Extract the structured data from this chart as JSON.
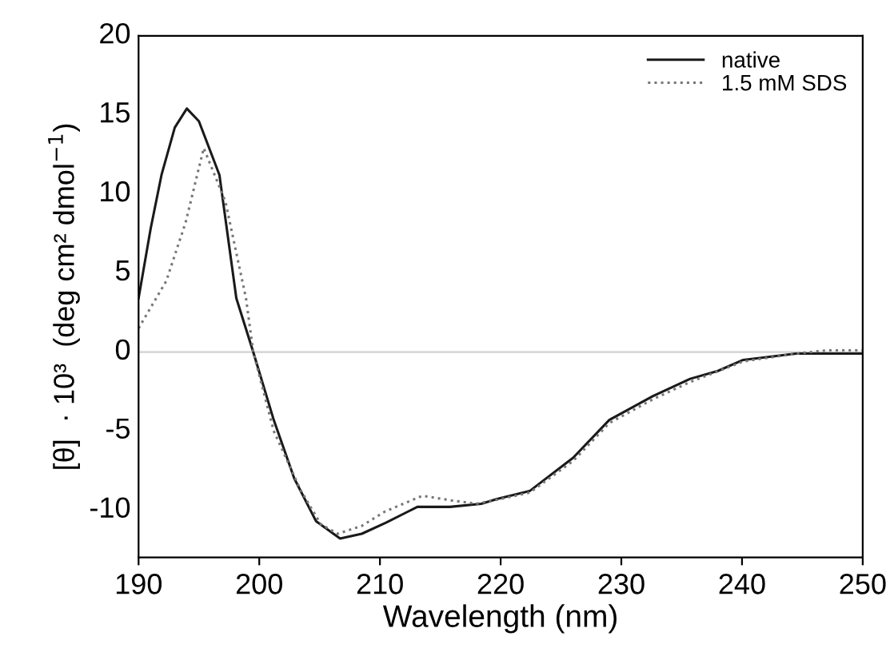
{
  "chart_data": {
    "type": "line",
    "xlabel": "Wavelength (nm)",
    "ylabel": "[θ]  · 10³  (deg cm² dmol$^{−1}$)",
    "xlim": [
      190,
      250
    ],
    "ylim": [
      -13,
      20
    ],
    "xticks": [
      190,
      200,
      210,
      220,
      230,
      240,
      250
    ],
    "yticks": [
      -10,
      -5,
      0,
      5,
      10,
      15,
      20
    ],
    "grid": false,
    "legend": "top right",
    "ref_lines": [
      {
        "axis": "y",
        "value": 0,
        "color": "#d9d9d9"
      }
    ],
    "series": [
      {
        "name": "native",
        "color": "#1a1a1a",
        "line_style": "solid",
        "x": [
          190,
          191,
          191.9,
          193,
          194,
          195,
          196,
          196.7,
          198.1,
          199.5,
          201.2,
          202.9,
          204.7,
          206.7,
          208.5,
          210.5,
          213.1,
          215.8,
          218.4,
          219.7,
          222.4,
          226,
          229,
          232.6,
          235.7,
          238,
          240.1,
          244.5,
          250
        ],
        "values": [
          3.4,
          7.8,
          11.2,
          14.2,
          15.4,
          14.6,
          12.6,
          11.2,
          3.4,
          0,
          -4.3,
          -8.0,
          -10.7,
          -11.8,
          -11.5,
          -10.8,
          -9.8,
          -9.8,
          -9.6,
          -9.3,
          -8.8,
          -6.7,
          -4.3,
          -2.8,
          -1.7,
          -1.2,
          -0.5,
          -0.1,
          -0.1
        ]
      },
      {
        "name": "1.5 mM SDS",
        "color": "#777777",
        "line_style": "dotted",
        "x": [
          190,
          192.3,
          193.9,
          195.4,
          197.2,
          198.9,
          199.5,
          201.2,
          203.4,
          205.1,
          206.5,
          208.5,
          210.4,
          213.5,
          216,
          218,
          220,
          222.4,
          226,
          229,
          232.6,
          235.7,
          240.1,
          244.5,
          247,
          250
        ],
        "values": [
          1.5,
          4.5,
          8.2,
          12.9,
          9.5,
          3.4,
          0,
          -5.0,
          -8.7,
          -10.9,
          -11.5,
          -11.0,
          -10.1,
          -9.1,
          -9.4,
          -9.6,
          -9.3,
          -8.9,
          -6.9,
          -4.5,
          -3.0,
          -1.9,
          -0.6,
          -0.1,
          0.1,
          0.1
        ]
      }
    ]
  }
}
